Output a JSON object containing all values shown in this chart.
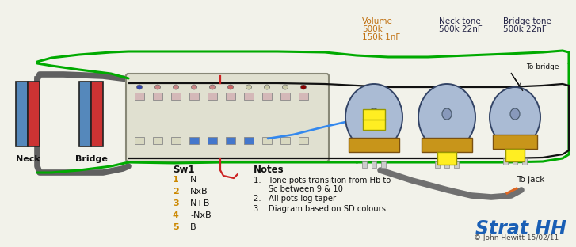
{
  "bg_color": "#f2f2ea",
  "title_text": "Strat HH",
  "title_color": "#1a5fb5",
  "copyright_text": "© John Hewitt 15/02/11",
  "neck_label": "Neck",
  "bridge_label": "Bridge",
  "sw1_label": "Sw1",
  "sw1_entries": [
    [
      "1",
      "N"
    ],
    [
      "2",
      "NxB"
    ],
    [
      "3",
      "N+B"
    ],
    [
      "4",
      "-NxB"
    ],
    [
      "5",
      "B"
    ]
  ],
  "notes_label": "Notes",
  "note1a": "1.   Tone pots transition from Hb to",
  "note1b": "      Sc between 9 & 10",
  "note2": "2.   All pots log taper",
  "note3": "3.   Diagram based on SD colours",
  "vol_label1": "Volume",
  "vol_label2": "500k",
  "vol_label3": "150k 1nF",
  "vol_label_color": "#c07010",
  "neck_tone_label1": "Neck tone",
  "neck_tone_label2": "500k 22nF",
  "bridge_tone_label1": "Bridge tone",
  "bridge_tone_label2": "500k 22nF",
  "label_color": "#222244",
  "to_bridge_label": "To bridge",
  "to_jack_label": "To jack",
  "color_green": "#00aa00",
  "color_black": "#111111",
  "color_gray": "#777777",
  "color_blue": "#3388ee",
  "color_red": "#cc2222",
  "color_orange": "#dd6622",
  "color_yellow": "#ffee22",
  "color_pot_body": "#c8951a",
  "color_pot_knob": "#aabbd4",
  "color_pickup_blue": "#5588bb",
  "color_pickup_red": "#cc3333",
  "color_switch_body": "#e0e0d0",
  "color_switch_border": "#888877"
}
